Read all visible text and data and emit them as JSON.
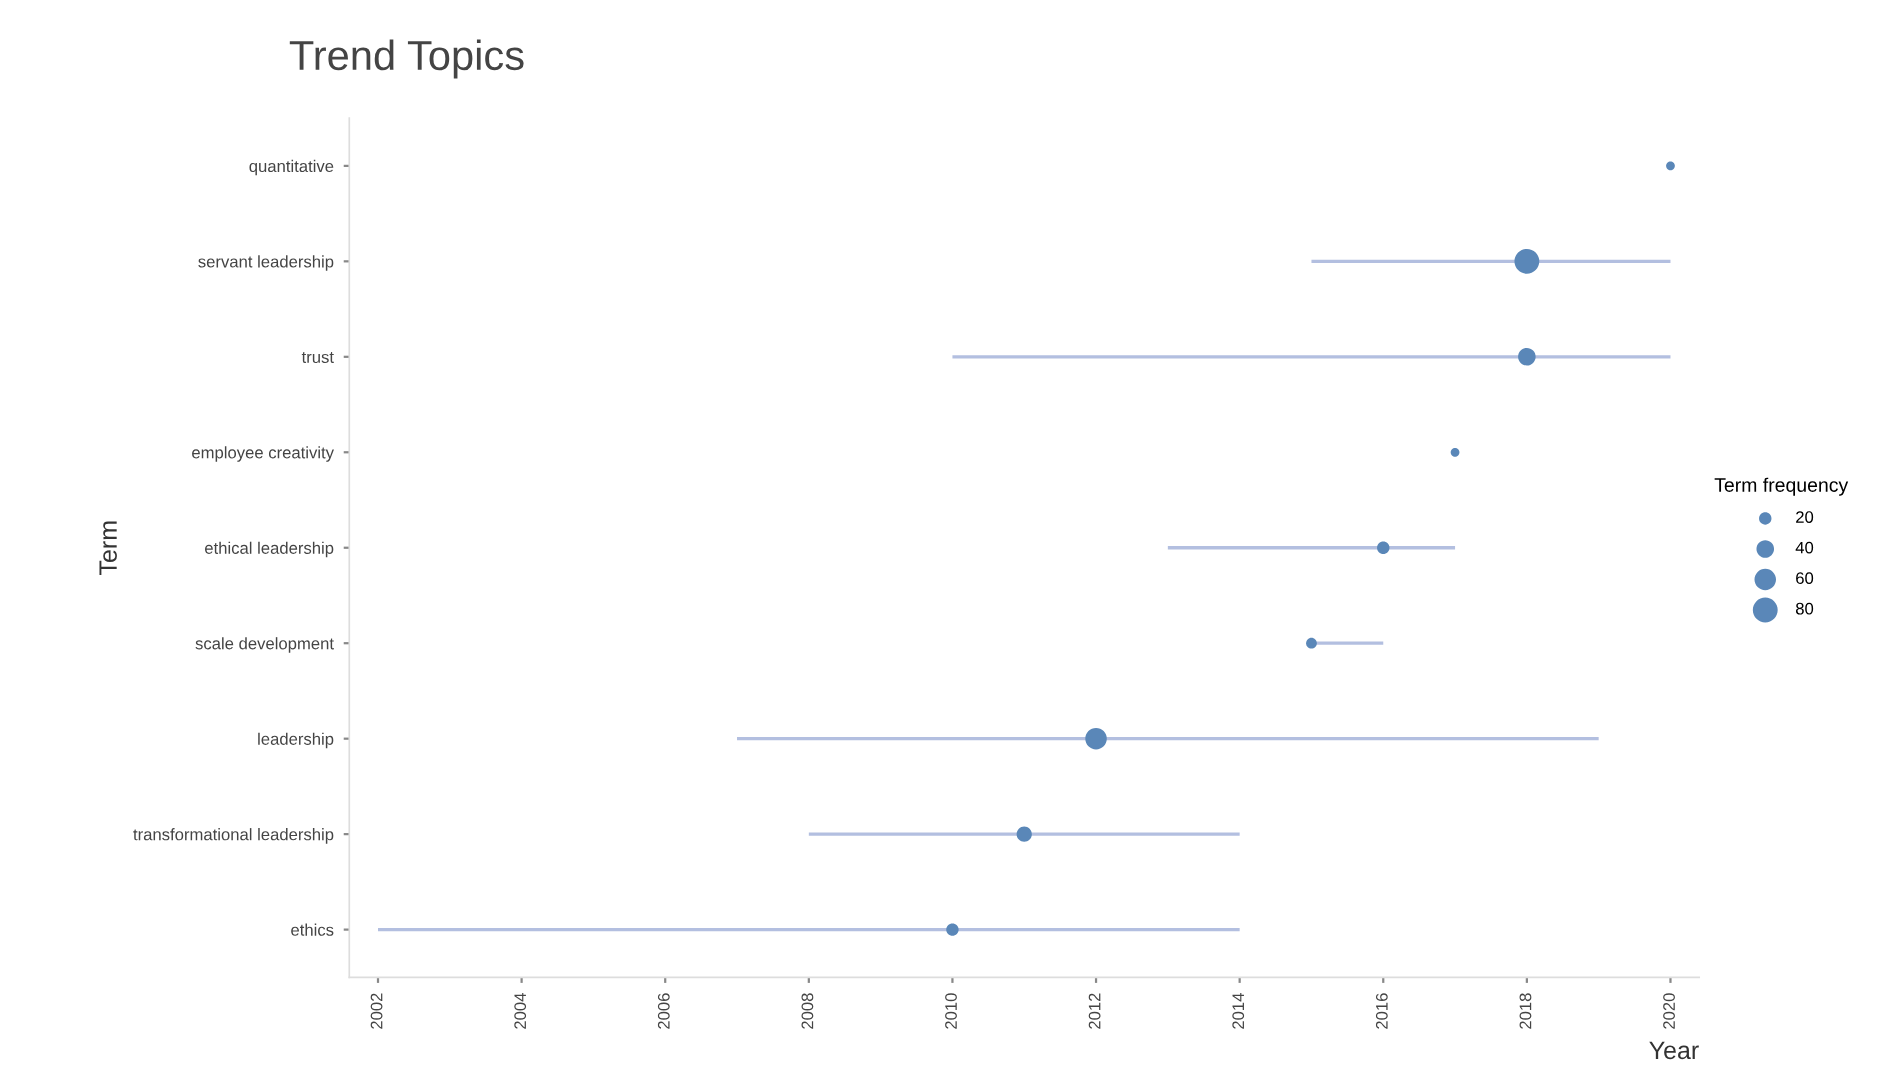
{
  "chart_data": {
    "type": "bubble",
    "orientation": "horizontal",
    "title": "Trend Topics",
    "xlabel": "Year",
    "ylabel": "Term",
    "legend_title": "Term frequency",
    "categories": [
      "quantitative",
      "servant leadership",
      "trust",
      "employee creativity",
      "ethical leadership",
      "scale development",
      "leadership",
      "transformational leadership",
      "ethics"
    ],
    "series": [
      {
        "color": "#5a87b8",
        "values": [
          2020,
          2018,
          2018,
          2017,
          2016,
          2015,
          2012,
          2011,
          2010
        ],
        "errors": [
          null,
          [
            2015,
            2020
          ],
          [
            2010,
            2020
          ],
          null,
          [
            2013,
            2017
          ],
          [
            2015,
            2016
          ],
          [
            2007,
            2019
          ],
          [
            2008,
            2014
          ],
          [
            2002,
            2014
          ]
        ],
        "sizes": [
          10,
          80,
          40,
          10,
          20,
          15,
          60,
          30,
          20
        ]
      }
    ],
    "size_legend": [
      20,
      40,
      60,
      80
    ],
    "xlim": [
      2001.6,
      2020.4
    ],
    "xticks": [
      2002,
      2004,
      2006,
      2008,
      2010,
      2012,
      2014,
      2016,
      2018,
      2020
    ],
    "grid": false
  }
}
